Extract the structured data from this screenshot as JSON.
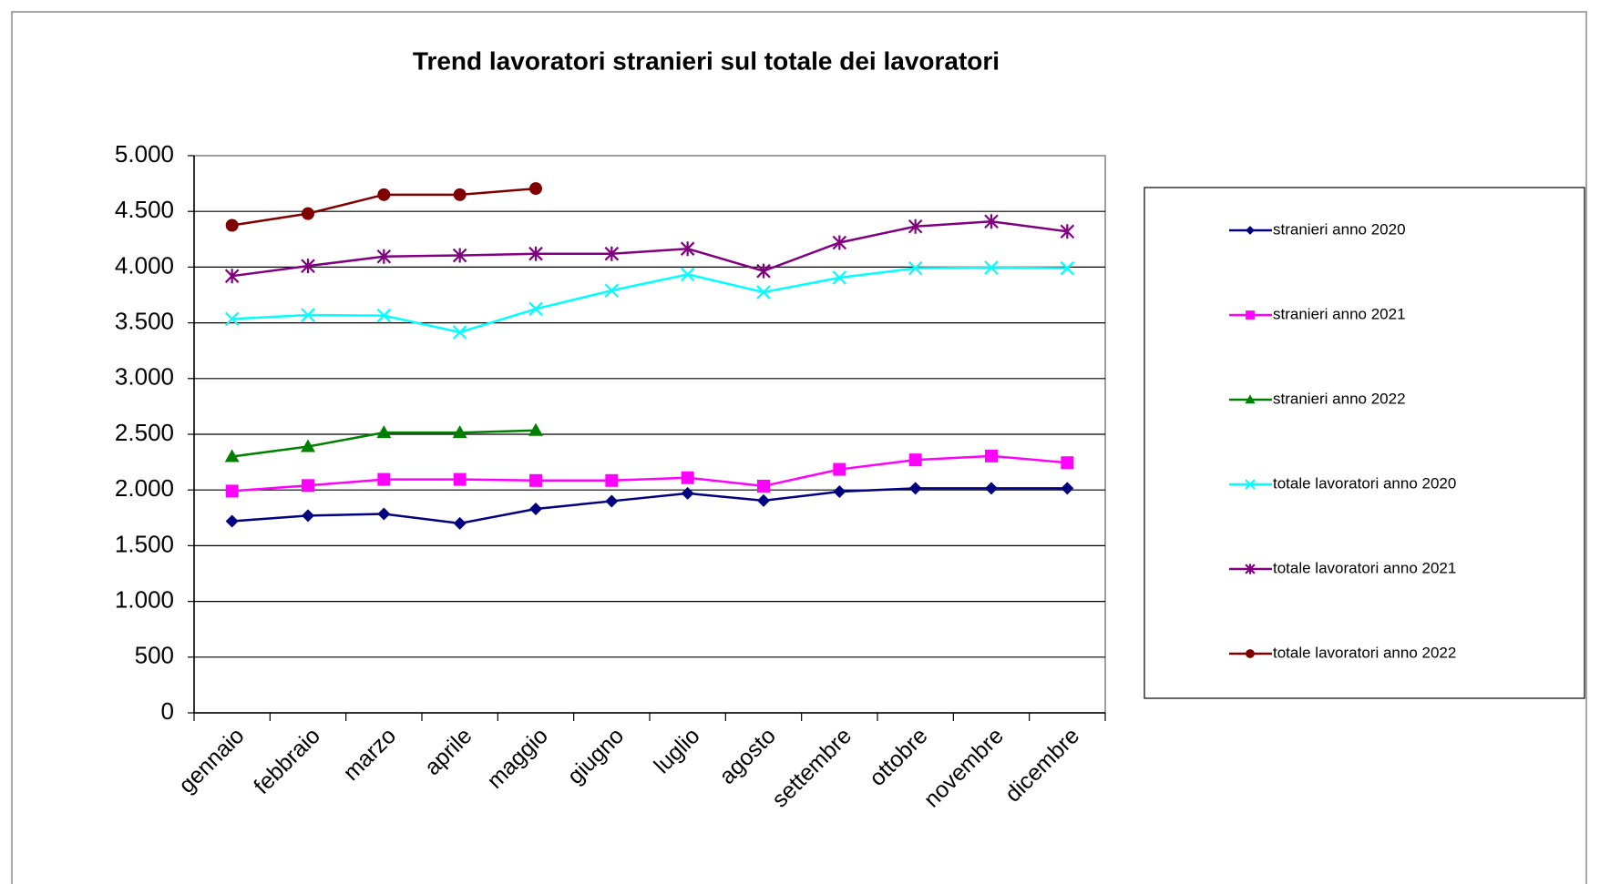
{
  "chart_data": {
    "type": "line",
    "title": "Trend lavoratori stranieri sul totale dei lavoratori",
    "categories": [
      "gennaio",
      "febbraio",
      "marzo",
      "aprile",
      "maggio",
      "giugno",
      "luglio",
      "agosto",
      "settembre",
      "ottobre",
      "novembre",
      "dicembre"
    ],
    "series": [
      {
        "name": "stranieri anno 2020",
        "color": "#000080",
        "marker": "diamond",
        "values": [
          1720,
          1770,
          1785,
          1700,
          1830,
          1900,
          1970,
          1905,
          1985,
          2015,
          2015,
          2015
        ]
      },
      {
        "name": "stranieri anno 2021",
        "color": "#ff00ff",
        "marker": "square",
        "values": [
          1990,
          2040,
          2095,
          2095,
          2085,
          2085,
          2110,
          2035,
          2185,
          2270,
          2305,
          2245
        ]
      },
      {
        "name": "stranieri anno 2022",
        "color": "#008000",
        "marker": "triangle",
        "values": [
          2300,
          2390,
          2515,
          2515,
          2535,
          null,
          null,
          null,
          null,
          null,
          null,
          null
        ]
      },
      {
        "name": "totale lavoratori anno 2020",
        "color": "#00ffff",
        "marker": "x",
        "values": [
          3535,
          3570,
          3565,
          3415,
          3625,
          3790,
          3935,
          3775,
          3905,
          3990,
          3995,
          3990
        ]
      },
      {
        "name": "totale lavoratori anno 2021",
        "color": "#800080",
        "marker": "star",
        "values": [
          3920,
          4010,
          4095,
          4105,
          4120,
          4120,
          4165,
          3965,
          4220,
          4365,
          4410,
          4320
        ]
      },
      {
        "name": "totale lavoratori anno 2022",
        "color": "#800000",
        "marker": "circle",
        "values": [
          4375,
          4480,
          4650,
          4650,
          4705,
          null,
          null,
          null,
          null,
          null,
          null,
          null
        ]
      }
    ],
    "ylim": [
      0,
      5000
    ],
    "yticks": [
      0,
      500,
      {
        "value": 1000,
        "label": "1.000"
      },
      {
        "value": 1500,
        "label": "1.500"
      },
      {
        "value": 2000,
        "label": "2.000"
      },
      {
        "value": 2500,
        "label": "2.500"
      },
      {
        "value": 3000,
        "label": "3.000"
      },
      {
        "value": 3500,
        "label": "3.500"
      },
      {
        "value": 4000,
        "label": "4.000"
      },
      {
        "value": 4500,
        "label": "4.500"
      },
      {
        "value": 5000,
        "label": "5.000"
      }
    ],
    "grid": true,
    "legend": "right"
  }
}
